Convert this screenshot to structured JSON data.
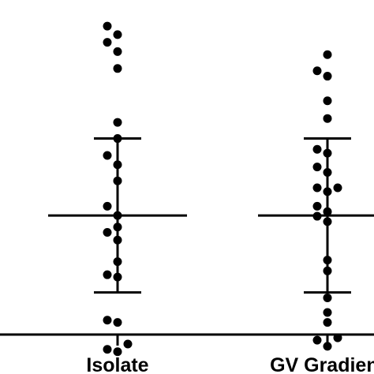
{
  "chart_data": {
    "type": "scatter",
    "categories": [
      "Isolate",
      "GV Gradient"
    ],
    "series": [
      {
        "category": "Isolate",
        "mean": 0.0,
        "sd": 1.0,
        "values": [
          -1.77,
          -1.74,
          -1.67,
          -1.36,
          -1.39,
          -0.8,
          -0.77,
          -0.6,
          -0.32,
          -0.22,
          -0.15,
          0.0,
          0.12,
          0.45,
          0.66,
          0.78,
          1.0,
          1.21,
          1.91,
          2.13,
          2.25,
          2.46,
          2.35
        ]
      },
      {
        "category": "GV Gradient",
        "mean": 0.0,
        "sd": 1.0,
        "values": [
          -1.7,
          -1.62,
          -1.59,
          -1.39,
          -1.26,
          -1.07,
          -0.72,
          -0.58,
          -0.08,
          -0.01,
          0.05,
          0.12,
          0.31,
          0.36,
          0.36,
          0.56,
          0.63,
          0.81,
          0.86,
          1.26,
          1.49,
          1.81,
          1.88,
          2.09
        ]
      }
    ],
    "title": "",
    "xlabel": "",
    "ylabel": "",
    "ylim": [
      -2.06,
      2.8
    ],
    "grid": false,
    "legend": "none"
  }
}
